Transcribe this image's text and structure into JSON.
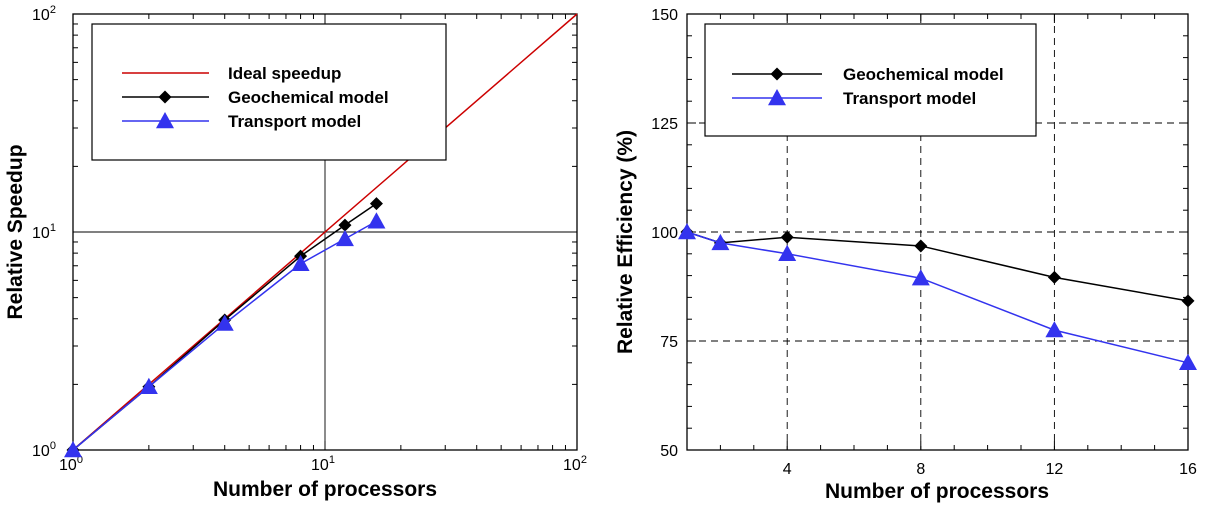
{
  "chart_data": [
    {
      "type": "line",
      "title": "",
      "xlabel": "Number of processors",
      "ylabel": "Relative Speedup",
      "xscale": "log",
      "yscale": "log",
      "xlim": [
        1,
        100
      ],
      "ylim": [
        1,
        100
      ],
      "xticks": [
        {
          "value": 1,
          "base": "10",
          "exp": "0"
        },
        {
          "value": 10,
          "base": "10",
          "exp": "1"
        },
        {
          "value": 100,
          "base": "10",
          "exp": "2"
        }
      ],
      "yticks": [
        {
          "value": 1,
          "base": "10",
          "exp": "0"
        },
        {
          "value": 10,
          "base": "10",
          "exp": "1"
        },
        {
          "value": 100,
          "base": "10",
          "exp": "2"
        }
      ],
      "grid": "major solid",
      "legend_position": "top-left",
      "series": [
        {
          "name": "Ideal speedup",
          "color": "#cc0000",
          "marker": "none",
          "x": [
            1,
            100
          ],
          "y": [
            1,
            100
          ]
        },
        {
          "name": "Geochemical model",
          "color": "#000000",
          "marker": "diamond",
          "x": [
            1,
            2,
            4,
            8,
            12,
            16
          ],
          "y": [
            1,
            1.95,
            3.95,
            7.75,
            10.75,
            13.5
          ]
        },
        {
          "name": "Transport model",
          "color": "#3333ee",
          "marker": "triangle",
          "x": [
            1,
            2,
            4,
            8,
            12,
            16
          ],
          "y": [
            1,
            1.95,
            3.8,
            7.15,
            9.3,
            11.2
          ]
        }
      ]
    },
    {
      "type": "line",
      "title": "",
      "xlabel": "Number of processors",
      "ylabel": "Relative Efficiency (%)",
      "xlim": [
        1,
        16
      ],
      "ylim": [
        50,
        150
      ],
      "xticks": [
        4,
        8,
        12,
        16
      ],
      "yticks": [
        50,
        75,
        100,
        125,
        150
      ],
      "grid": "major dashed",
      "legend_position": "top-left",
      "series": [
        {
          "name": "Geochemical model",
          "color": "#000000",
          "marker": "diamond",
          "x": [
            1,
            2,
            4,
            8,
            12,
            16
          ],
          "y": [
            100,
            97.5,
            98.8,
            96.8,
            89.6,
            84.2
          ]
        },
        {
          "name": "Transport model",
          "color": "#3333ee",
          "marker": "triangle",
          "x": [
            1,
            2,
            4,
            8,
            12,
            16
          ],
          "y": [
            100,
            97.5,
            95.0,
            89.4,
            77.5,
            70.0
          ]
        }
      ]
    }
  ]
}
